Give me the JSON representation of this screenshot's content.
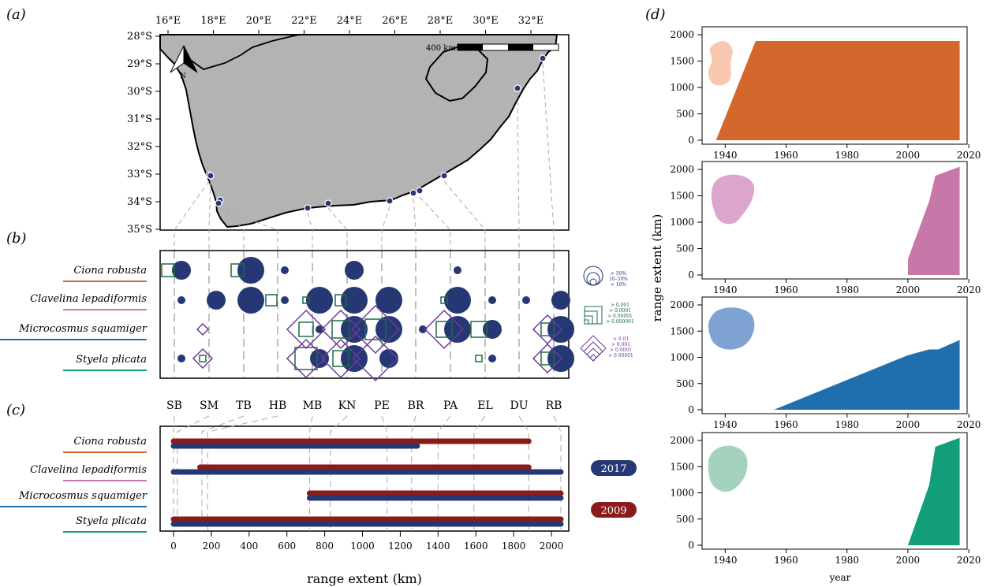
{
  "panel_labels": {
    "a": "(a)",
    "b": "(b)",
    "c": "(c)",
    "d": "(d)"
  },
  "colors": {
    "ciona": "#d4672b",
    "clavelina": "#c878a8",
    "microcosmus": "#1f6fae",
    "styela": "#129e78",
    "navy": "#263873",
    "darkred": "#8b1a1a",
    "square_green": "#1f6b45",
    "diamond_purple": "#6b3a9a",
    "land": "#b3b3b4"
  },
  "species": [
    "Ciona robusta",
    "Clavelina lepadiformis",
    "Microcosmus squamiger",
    "Styela plicata"
  ],
  "map": {
    "lon_ticks": [
      "16°E",
      "18°E",
      "20°E",
      "22°E",
      "24°E",
      "26°E",
      "28°E",
      "30°E",
      "32°E"
    ],
    "lat_ticks": [
      "28°S",
      "29°S",
      "30°S",
      "31°S",
      "32°S",
      "33°S",
      "34°S",
      "35°S"
    ],
    "scale_label": "400 km",
    "north_label": "N"
  },
  "sites": [
    "SB",
    "SM",
    "TB",
    "HB",
    "MB",
    "KN",
    "PE",
    "BR",
    "PA",
    "EL",
    "DU",
    "RB"
  ],
  "bubble_legend": {
    "circles": [
      "> 50%",
      "10–50%",
      "< 10%"
    ],
    "squares": [
      "> 0.001",
      "> 0.0001",
      "> 0.00001",
      "> 0.000001"
    ],
    "diamonds": [
      "> 0.01",
      "> 0.001",
      "> 0.0001",
      "> 0.00001"
    ]
  },
  "chart_data": [
    {
      "panel": "b",
      "type": "scatter",
      "title": "",
      "categories": [
        "SB",
        "SM",
        "TB",
        "HB",
        "MB",
        "KN",
        "PE",
        "BR",
        "PA",
        "EL",
        "DU",
        "RB"
      ],
      "rows": [
        "Ciona robusta",
        "Clavelina lepadiformis",
        "Microcosmus squamiger",
        "Styela plicata"
      ],
      "circles_size_class": [
        [
          2,
          0,
          3,
          1,
          0,
          2,
          0,
          0,
          1,
          0,
          0,
          0
        ],
        [
          1,
          2,
          3,
          1,
          3,
          3,
          3,
          0,
          3,
          1,
          1,
          2
        ],
        [
          0,
          0,
          0,
          0,
          1,
          3,
          3,
          1,
          3,
          2,
          0,
          3
        ],
        [
          1,
          0,
          0,
          0,
          2,
          3,
          2,
          0,
          0,
          1,
          0,
          3
        ]
      ]
    },
    {
      "panel": "c",
      "type": "bar",
      "xlabel": "range extent (km)",
      "xlim": [
        0,
        2050
      ],
      "x_ticks": [
        0,
        200,
        400,
        600,
        800,
        1000,
        1200,
        1400,
        1600,
        1800,
        2000
      ],
      "series": [
        {
          "name": "2009",
          "color": "#8b1a1a",
          "ranges": [
            [
              0,
              1880
            ],
            [
              140,
              1880
            ],
            [
              720,
              2050
            ],
            [
              0,
              2050
            ]
          ]
        },
        {
          "name": "2017",
          "color": "#263873",
          "ranges": [
            [
              0,
              1290
            ],
            [
              0,
              2050
            ],
            [
              720,
              2050
            ],
            [
              0,
              2050
            ]
          ]
        }
      ]
    },
    {
      "panel": "d",
      "type": "area",
      "xlabel": "year",
      "ylabel": "range extent (km)",
      "xlim": [
        1935,
        2021
      ],
      "ylim": [
        0,
        2000
      ],
      "x_ticks": [
        1940,
        1960,
        1980,
        2000,
        2020
      ],
      "y_ticks": [
        0,
        500,
        1000,
        1500,
        2000
      ],
      "series": [
        {
          "name": "Ciona robusta",
          "color": "#d4672b",
          "x": [
            1937,
            1950,
            2017
          ],
          "y": [
            0,
            1880,
            1880
          ]
        },
        {
          "name": "Clavelina lepadiformis",
          "color": "#c878a8",
          "x": [
            2000,
            2000,
            2007,
            2009,
            2017
          ],
          "y": [
            0,
            300,
            1400,
            1880,
            2050
          ]
        },
        {
          "name": "Microcosmus squamiger",
          "color": "#1f6fae",
          "x": [
            1956,
            2000,
            2007,
            2010,
            2017
          ],
          "y": [
            0,
            1040,
            1150,
            1150,
            1330
          ]
        },
        {
          "name": "Styela plicata",
          "color": "#129e78",
          "x": [
            2000,
            2007,
            2009,
            2017
          ],
          "y": [
            0,
            1150,
            1880,
            2050
          ]
        }
      ]
    }
  ]
}
